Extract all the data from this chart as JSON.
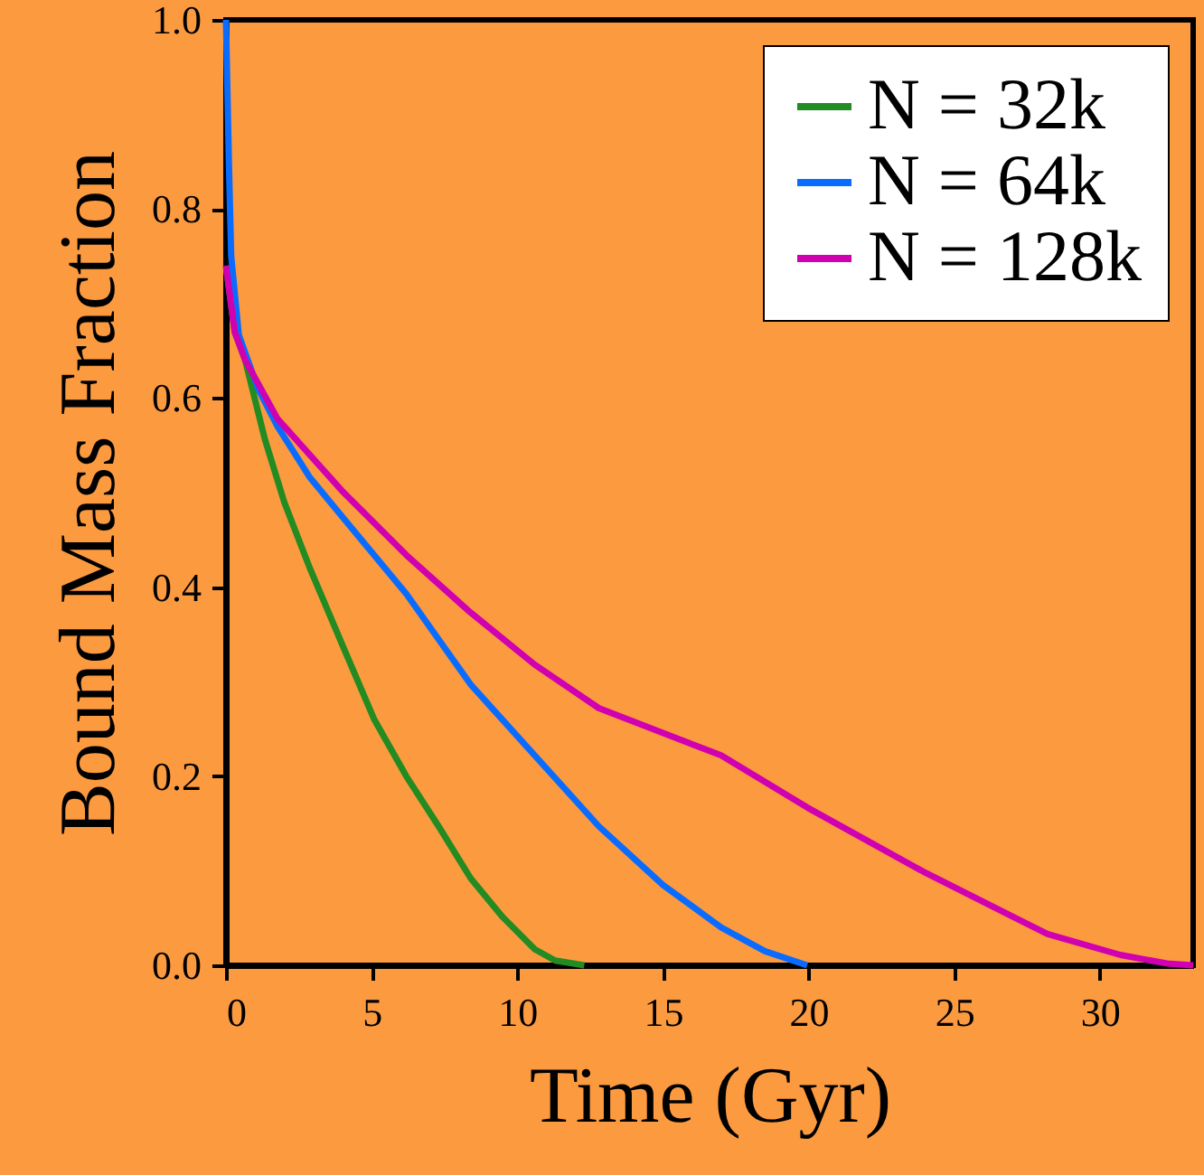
{
  "chart_data": {
    "type": "line",
    "xlabel": "Time (Gyr)",
    "ylabel": "Bound Mass Fraction",
    "xlim": [
      0,
      33.2
    ],
    "ylim": [
      0,
      1.0
    ],
    "xticks": [
      0,
      5,
      10,
      15,
      20,
      25,
      30
    ],
    "yticks": [
      {
        "value": 0,
        "label": "0.0"
      },
      {
        "value": 0.2,
        "label": "0.2"
      },
      {
        "value": 0.4,
        "label": "0.4"
      },
      {
        "value": 0.6,
        "label": "0.6"
      },
      {
        "value": 0.8,
        "label": "0.8"
      },
      {
        "value": 1.0,
        "label": "1.0"
      }
    ],
    "grid": false,
    "legend": "top right",
    "marker": "none",
    "line_style": "solid",
    "series": [
      {
        "name": "N =   32k",
        "color": "#228b22",
        "x": [
          0,
          0.3,
          0.66,
          1.33,
          2.0,
          2.88,
          3.98,
          5.09,
          6.19,
          7.3,
          8.4,
          9.5,
          10.6,
          11.3,
          12.3
        ],
        "values": [
          0.74,
          0.67,
          0.64,
          0.557,
          0.49,
          0.42,
          0.34,
          0.26,
          0.2,
          0.147,
          0.092,
          0.051,
          0.017,
          0.005,
          0
        ]
      },
      {
        "name": "N =   64k",
        "color": "#0a6cff",
        "x": [
          0,
          0.1,
          0.18,
          0.44,
          1.1,
          1.77,
          2.88,
          3.98,
          6.19,
          8.4,
          10.6,
          12.8,
          15.0,
          17.0,
          18.5,
          19.95
        ],
        "values": [
          1.0,
          0.85,
          0.75,
          0.667,
          0.61,
          0.57,
          0.516,
          0.475,
          0.393,
          0.297,
          0.222,
          0.147,
          0.085,
          0.04,
          0.015,
          0
        ]
      },
      {
        "name": "N = 128k",
        "color": "#d000b0",
        "x": [
          0,
          0.3,
          0.66,
          1.77,
          3.98,
          6.19,
          8.4,
          10.6,
          12.8,
          17.0,
          19.95,
          24.0,
          28.2,
          30.7,
          32.3,
          33.2
        ],
        "values": [
          0.74,
          0.67,
          0.64,
          0.578,
          0.502,
          0.434,
          0.373,
          0.318,
          0.272,
          0.222,
          0.167,
          0.098,
          0.033,
          0.011,
          0.002,
          0
        ]
      }
    ]
  }
}
